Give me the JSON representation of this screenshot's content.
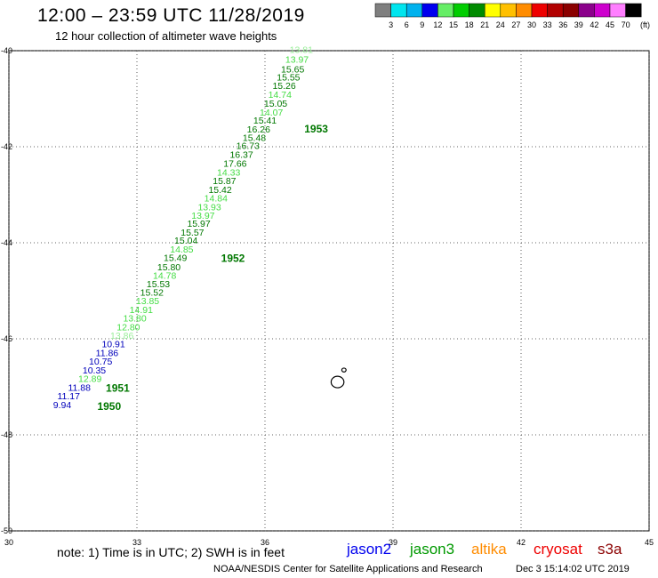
{
  "header": {
    "title": "12:00 – 23:59 UTC 11/28/2019",
    "subtitle": "12 hour collection of altimeter wave heights"
  },
  "legend": {
    "bins": [
      {
        "label": "3",
        "color": "#7f7f7f"
      },
      {
        "label": "6",
        "color": "#00e5ee"
      },
      {
        "label": "9",
        "color": "#00b2ee"
      },
      {
        "label": "12",
        "color": "#0000ee"
      },
      {
        "label": "15",
        "color": "#66ee66"
      },
      {
        "label": "18",
        "color": "#00cd00"
      },
      {
        "label": "21",
        "color": "#008b00"
      },
      {
        "label": "24",
        "color": "#ffff00"
      },
      {
        "label": "27",
        "color": "#ffc000"
      },
      {
        "label": "30",
        "color": "#ff8c00"
      },
      {
        "label": "33",
        "color": "#ee0000"
      },
      {
        "label": "36",
        "color": "#b20000"
      },
      {
        "label": "39",
        "color": "#8b0000"
      },
      {
        "label": "42",
        "color": "#8b008b"
      },
      {
        "label": "45",
        "color": "#cd00cd"
      },
      {
        "label": "70",
        "color": "#ff7fff"
      },
      {
        "label": "",
        "color": "#000000"
      }
    ],
    "unit": "(ft)"
  },
  "chart_data": {
    "type": "scatter",
    "x_range": [
      30,
      45
    ],
    "y_range": [
      -50,
      -40
    ],
    "x_ticks": [
      "30",
      "33",
      "36",
      "39",
      "42",
      "45"
    ],
    "y_ticks": [
      "-40",
      "-42",
      "-44",
      "-46",
      "-48",
      "-50"
    ],
    "grid": true,
    "colors": {
      "blue": "#0000bb",
      "dark_green": "#007700",
      "light_green": "#44dd44",
      "pale_green": "#99ee99"
    },
    "points": [
      {
        "lon": 36.85,
        "lat": -40.05,
        "label": "13.81",
        "color": "#99ee99"
      },
      {
        "lon": 36.75,
        "lat": -40.25,
        "label": "13.97",
        "color": "#44dd44"
      },
      {
        "lon": 36.65,
        "lat": -40.45,
        "label": "15.65",
        "color": "#007700"
      },
      {
        "lon": 36.55,
        "lat": -40.62,
        "label": "15.55",
        "color": "#007700"
      },
      {
        "lon": 36.45,
        "lat": -40.8,
        "label": "15.26",
        "color": "#007700"
      },
      {
        "lon": 36.35,
        "lat": -40.98,
        "label": "14.74",
        "color": "#44dd44"
      },
      {
        "lon": 36.25,
        "lat": -41.17,
        "label": "15.05",
        "color": "#007700"
      },
      {
        "lon": 36.15,
        "lat": -41.35,
        "label": "14.07",
        "color": "#44dd44"
      },
      {
        "lon": 36.0,
        "lat": -41.52,
        "label": "15.41",
        "color": "#007700"
      },
      {
        "lon": 35.85,
        "lat": -41.7,
        "label": "16.26",
        "color": "#007700"
      },
      {
        "lon": 35.75,
        "lat": -41.88,
        "label": "15.48",
        "color": "#007700"
      },
      {
        "lon": 35.6,
        "lat": -42.05,
        "label": "16.73",
        "color": "#007700"
      },
      {
        "lon": 35.45,
        "lat": -42.23,
        "label": "16.37",
        "color": "#007700"
      },
      {
        "lon": 35.3,
        "lat": -42.42,
        "label": "17.66",
        "color": "#007700"
      },
      {
        "lon": 35.15,
        "lat": -42.6,
        "label": "14.33",
        "color": "#44dd44"
      },
      {
        "lon": 35.05,
        "lat": -42.78,
        "label": "15.87",
        "color": "#007700"
      },
      {
        "lon": 34.95,
        "lat": -42.96,
        "label": "15.42",
        "color": "#007700"
      },
      {
        "lon": 34.85,
        "lat": -43.14,
        "label": "14.84",
        "color": "#44dd44"
      },
      {
        "lon": 34.7,
        "lat": -43.32,
        "label": "13.93",
        "color": "#44dd44"
      },
      {
        "lon": 34.55,
        "lat": -43.5,
        "label": "13.97",
        "color": "#44dd44"
      },
      {
        "lon": 34.45,
        "lat": -43.67,
        "label": "15.97",
        "color": "#007700"
      },
      {
        "lon": 34.3,
        "lat": -43.85,
        "label": "15.57",
        "color": "#007700"
      },
      {
        "lon": 34.15,
        "lat": -44.02,
        "label": "15.04",
        "color": "#007700"
      },
      {
        "lon": 34.05,
        "lat": -44.2,
        "label": "14.85",
        "color": "#44dd44"
      },
      {
        "lon": 33.9,
        "lat": -44.38,
        "label": "15.49",
        "color": "#007700"
      },
      {
        "lon": 33.75,
        "lat": -44.57,
        "label": "15.80",
        "color": "#007700"
      },
      {
        "lon": 33.65,
        "lat": -44.75,
        "label": "14.78",
        "color": "#44dd44"
      },
      {
        "lon": 33.5,
        "lat": -44.93,
        "label": "15.53",
        "color": "#007700"
      },
      {
        "lon": 33.35,
        "lat": -45.1,
        "label": "15.52",
        "color": "#007700"
      },
      {
        "lon": 33.25,
        "lat": -45.28,
        "label": "13.85",
        "color": "#44dd44"
      },
      {
        "lon": 33.1,
        "lat": -45.46,
        "label": "14.91",
        "color": "#44dd44"
      },
      {
        "lon": 32.95,
        "lat": -45.64,
        "label": "13.80",
        "color": "#44dd44"
      },
      {
        "lon": 32.8,
        "lat": -45.82,
        "label": "12.80",
        "color": "#44dd44"
      },
      {
        "lon": 32.65,
        "lat": -46.0,
        "label": "13.86",
        "color": "#99ee99"
      },
      {
        "lon": 32.45,
        "lat": -46.18,
        "label": "10.91",
        "color": "#0000bb"
      },
      {
        "lon": 32.3,
        "lat": -46.36,
        "label": "11.86",
        "color": "#0000bb"
      },
      {
        "lon": 32.15,
        "lat": -46.54,
        "label": "10.75",
        "color": "#0000bb"
      },
      {
        "lon": 32.0,
        "lat": -46.72,
        "label": "10.35",
        "color": "#0000bb"
      },
      {
        "lon": 31.9,
        "lat": -46.9,
        "label": "12.89",
        "color": "#44dd44"
      },
      {
        "lon": 31.65,
        "lat": -47.08,
        "label": "11.88",
        "color": "#0000bb"
      },
      {
        "lon": 31.4,
        "lat": -47.26,
        "label": "11.17",
        "color": "#0000bb"
      },
      {
        "lon": 31.25,
        "lat": -47.44,
        "label": "9.94",
        "color": "#0000bb"
      }
    ],
    "time_labels": [
      {
        "lon": 37.2,
        "lat": -41.7,
        "label": "1953"
      },
      {
        "lon": 35.25,
        "lat": -44.4,
        "label": "1952"
      },
      {
        "lon": 32.55,
        "lat": -47.1,
        "label": "1951"
      },
      {
        "lon": 32.35,
        "lat": -47.48,
        "label": "1950"
      }
    ],
    "islands": [
      {
        "lon": 37.7,
        "lat": -46.9,
        "rx": 0.15,
        "ry": 0.12
      },
      {
        "lon": 37.85,
        "lat": -46.65,
        "rx": 0.05,
        "ry": 0.04
      }
    ]
  },
  "footer": {
    "note": "note: 1) Time is in UTC; 2) SWH is in feet",
    "satellites": [
      {
        "label": "jason2",
        "color": "#0000ee"
      },
      {
        "label": "jason3",
        "color": "#009900"
      },
      {
        "label": "altika",
        "color": "#ff8c00"
      },
      {
        "label": "cryosat",
        "color": "#ee0000"
      },
      {
        "label": "s3a",
        "color": "#8b0000"
      }
    ],
    "credit": "NOAA/NESDIS Center for Satellite Applications and Research",
    "timestamp": "Dec  3 15:14:02 UTC 2019"
  }
}
